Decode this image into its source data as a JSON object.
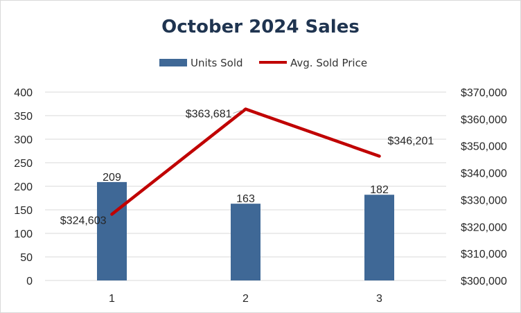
{
  "chart_data": {
    "type": "bar",
    "title": "October 2024 Sales",
    "categories": [
      "1",
      "2",
      "3"
    ],
    "series": [
      {
        "name": "Units Sold",
        "type": "bar",
        "axis": "left",
        "values": [
          209,
          163,
          182
        ],
        "labels": [
          "209",
          "163",
          "182"
        ],
        "color": "#3f6896"
      },
      {
        "name": "Avg. Sold Price",
        "type": "line",
        "axis": "right",
        "values": [
          324603,
          363681,
          346201
        ],
        "labels": [
          "$324,603",
          "$363,681",
          "$346,201"
        ],
        "color": "#c00000"
      }
    ],
    "y_left": {
      "min": 0,
      "max": 400,
      "ticks": [
        "0",
        "50",
        "100",
        "150",
        "200",
        "250",
        "300",
        "350",
        "400"
      ]
    },
    "y_right": {
      "min": 300000,
      "max": 370000,
      "ticks": [
        "$300,000",
        "$310,000",
        "$320,000",
        "$330,000",
        "$340,000",
        "$350,000",
        "$360,000",
        "$370,000"
      ]
    },
    "grid": true,
    "legend": "top-center",
    "colors": {
      "title": "#1f3450",
      "gridline": "#d9d9d9",
      "axis_text": "#262626"
    }
  }
}
